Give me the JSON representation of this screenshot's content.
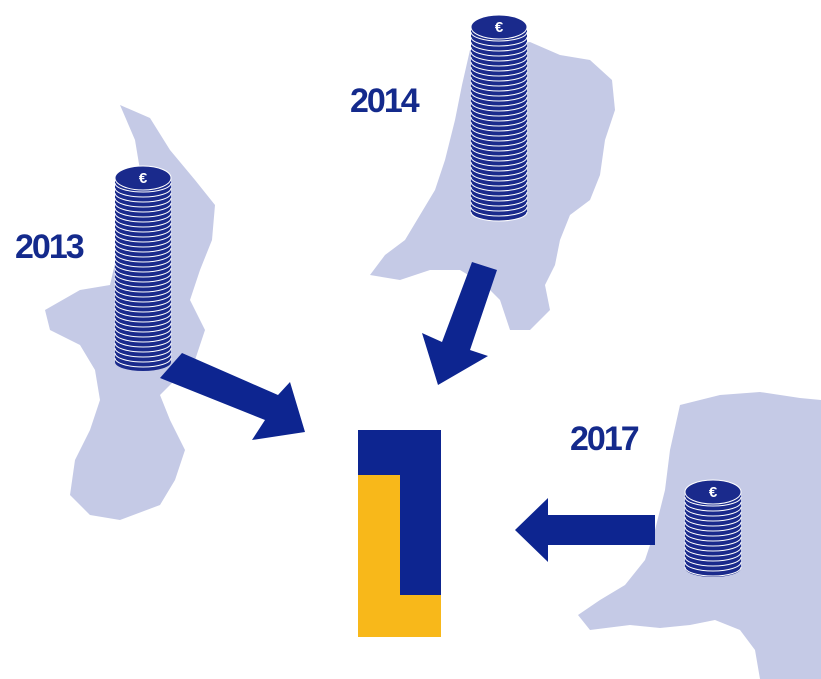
{
  "items": [
    {
      "year": "2013",
      "symbol": "€"
    },
    {
      "year": "2014",
      "symbol": "€"
    },
    {
      "year": "2017",
      "symbol": "€"
    }
  ]
}
